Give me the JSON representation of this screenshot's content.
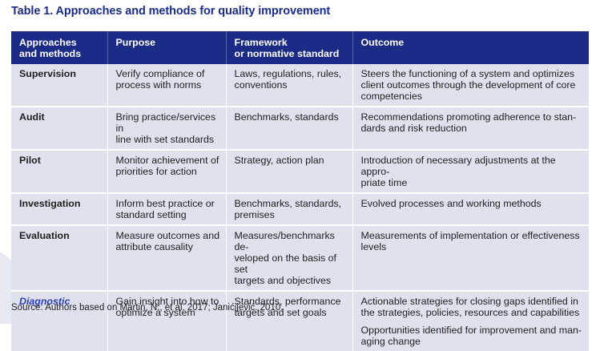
{
  "title": "Table 1. Approaches and methods for quality improvement",
  "headers": {
    "approaches": [
      "Approaches",
      "and methods"
    ],
    "purpose": "Purpose",
    "framework": [
      "Framework",
      "or normative standard"
    ],
    "outcome": "Outcome"
  },
  "rows": [
    {
      "approach": "Supervision",
      "purpose": [
        "Verify compliance of",
        "process with norms"
      ],
      "framework": [
        "Laws, regulations, rules,",
        "conventions"
      ],
      "outcome": [
        "Steers the functioning of a system and optimizes",
        "client outcomes through the development of core",
        "competencies"
      ]
    },
    {
      "approach": "Audit",
      "purpose": [
        "Bring practice/services in",
        "line with set standards"
      ],
      "framework": [
        "Benchmarks, standards"
      ],
      "outcome": [
        "Recommendations promoting adherence to stan-",
        "dards and risk reduction"
      ]
    },
    {
      "approach": "Pilot",
      "purpose": [
        "Monitor achievement of",
        "priorities for action"
      ],
      "framework": [
        "Strategy, action plan"
      ],
      "outcome": [
        "Introduction of necessary adjustments at the appro-",
        "priate time"
      ]
    },
    {
      "approach": "Investigation",
      "purpose": [
        "Inform best practice or",
        "standard setting"
      ],
      "framework": [
        "Benchmarks, standards,",
        "premises"
      ],
      "outcome": [
        "Evolved processes and working methods"
      ]
    },
    {
      "approach": "Evaluation",
      "purpose": [
        "Measure outcomes and",
        "attribute causality"
      ],
      "framework": [
        "Measures/benchmarks de-",
        "veloped on the basis of set",
        "targets and objectives"
      ],
      "outcome": [
        "Measurements of implementation or effectiveness",
        "levels"
      ]
    },
    {
      "approach": "Diagnostic",
      "purpose": [
        "Gain insight into how to",
        "optimize a system"
      ],
      "framework": [
        "Standards, performance",
        "targets and set goals"
      ],
      "outcome": [
        "Actionable strategies for closing gaps identified in",
        "the strategies, policies, resources and capabilities"
      ],
      "outcome_extra": [
        "Opportunities identified for improvement and man-",
        "aging change"
      ]
    }
  ],
  "source": "Source: Authors based on Martin, N., et al. 2017; Janićijević. 2010.",
  "colors": {
    "header_bg": "#1b2b86",
    "row_bg": "#dfe1ef",
    "highlight_text": "#2a3cb8",
    "title_text": "#1b2b86"
  }
}
